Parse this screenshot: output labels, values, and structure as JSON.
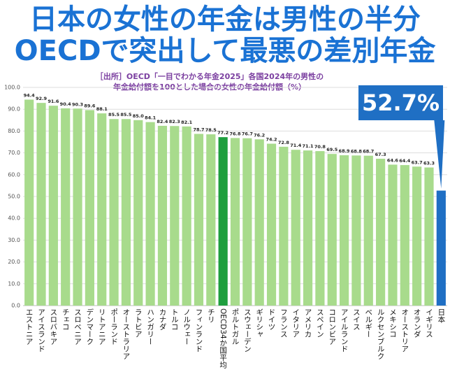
{
  "chart_data": {
    "type": "bar",
    "title": [
      "日本の女性の年金は男性の半分",
      "OECDで突出して最悪の差別年金"
    ],
    "subtitle": [
      "［出所］OECD「一目でわかる年金2025」各国2024年の男性の",
      "年金給付額を100とした場合の女性の年金給付額（%）"
    ],
    "categories": [
      "エストニア",
      "アイスランド",
      "スロバキア",
      "チェコ",
      "スロベニア",
      "デンマーク",
      "リトアニア",
      "ポーランド",
      "オーストラリア",
      "ラトビア",
      "ハンガリー",
      "カナダ",
      "トルコ",
      "ノルウェー",
      "フィンランド",
      "チリ",
      "OECD34か国平均",
      "ポルトガル",
      "スウェーデン",
      "ギリシャ",
      "ドイツ",
      "フランス",
      "イタリア",
      "アメリカ",
      "スペイン",
      "コロンビア",
      "アイルランド",
      "スイス",
      "ベルギー",
      "ルクセンブルク",
      "メキシコ",
      "オーストリア",
      "オランダ",
      "イギリス",
      "日本"
    ],
    "values": [
      94.4,
      92.9,
      91.6,
      90.4,
      90.3,
      89.6,
      88.1,
      85.5,
      85.5,
      85.0,
      84.1,
      82.4,
      82.3,
      82.1,
      78.7,
      78.5,
      77.2,
      76.8,
      76.7,
      76.2,
      74.2,
      72.8,
      71.4,
      71.1,
      70.8,
      69.5,
      68.9,
      68.8,
      68.7,
      67.3,
      64.6,
      64.4,
      63.7,
      63.3,
      52.7
    ],
    "value_labels": [
      "94.4",
      "92.9",
      "91.6",
      "90.4",
      "90.3",
      "89.6",
      "88.1",
      "85.5",
      "85.5",
      "85.0",
      "84.1",
      "82.4",
      "82.3",
      "82.1",
      "78.7",
      "78.5",
      "77.2",
      "76.8",
      "76.7",
      "76.2",
      "74.2",
      "72.8",
      "71.4",
      "71.1",
      "70.8",
      "69.5",
      "68.9",
      "68.8",
      "68.7",
      "67.3",
      "64.6",
      "64.4",
      "63.7",
      "63.3",
      "52.7%"
    ],
    "colors": [
      "#a8db8c",
      "#a8db8c",
      "#a8db8c",
      "#a8db8c",
      "#a8db8c",
      "#a8db8c",
      "#a8db8c",
      "#a8db8c",
      "#a8db8c",
      "#a8db8c",
      "#a8db8c",
      "#a8db8c",
      "#a8db8c",
      "#a8db8c",
      "#a8db8c",
      "#a8db8c",
      "#1e9e3e",
      "#a8db8c",
      "#a8db8c",
      "#a8db8c",
      "#a8db8c",
      "#a8db8c",
      "#a8db8c",
      "#a8db8c",
      "#a8db8c",
      "#a8db8c",
      "#a8db8c",
      "#a8db8c",
      "#a8db8c",
      "#a8db8c",
      "#a8db8c",
      "#a8db8c",
      "#a8db8c",
      "#a8db8c",
      "#1f6fc4"
    ],
    "ylim": [
      0,
      100
    ],
    "yticks": [
      {
        "value": 0,
        "label": "0.0"
      },
      {
        "value": 10,
        "label": "10.0"
      },
      {
        "value": 20,
        "label": "20.0"
      },
      {
        "value": 30,
        "label": "30.0"
      },
      {
        "value": 40,
        "label": "40.0"
      },
      {
        "value": 50,
        "label": "50.0"
      },
      {
        "value": 60,
        "label": "60.0"
      },
      {
        "value": 70,
        "label": "70.0"
      },
      {
        "value": 80,
        "label": "80.0"
      },
      {
        "value": 90,
        "label": "90.0"
      },
      {
        "value": 100,
        "label": "100.0"
      }
    ],
    "grid": true
  }
}
